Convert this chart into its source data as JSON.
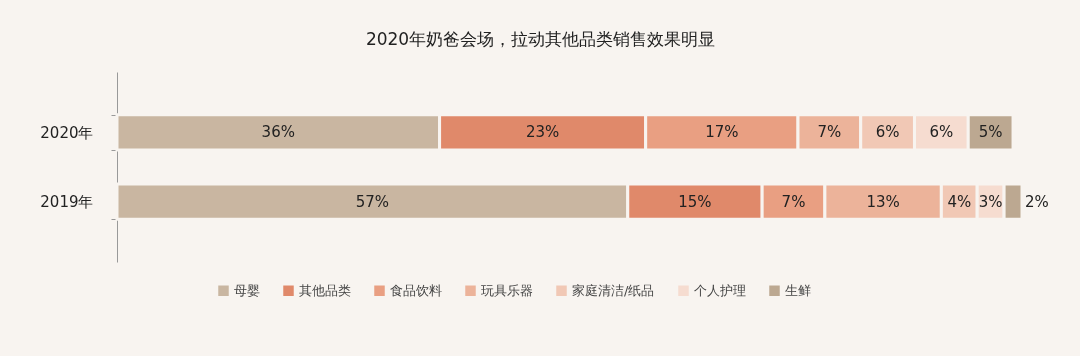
{
  "chart_data": {
    "type": "bar",
    "orientation": "horizontal",
    "stacked": true,
    "title": "2020年奶爸会场，拉动其他品类销售效果明显",
    "categories": [
      "2020年",
      "2019年"
    ],
    "xlim": [
      0,
      101
    ],
    "tick_labels": "y",
    "grid": false,
    "legend": "bottom",
    "series": [
      {
        "name": "母婴",
        "color": "#c9b6a1",
        "values": [
          36,
          57
        ],
        "value_labels": [
          "36%",
          "57%"
        ]
      },
      {
        "name": "其他品类",
        "color": "#e0896a",
        "values": [
          23,
          15
        ],
        "value_labels": [
          "23%",
          "15%"
        ]
      },
      {
        "name": "食品饮料",
        "color": "#e99f82",
        "values": [
          17,
          7
        ],
        "value_labels": [
          "17%",
          "7%"
        ]
      },
      {
        "name": "玩具乐器",
        "color": "#ecb39a",
        "values": [
          7,
          13
        ],
        "value_labels": [
          "7%",
          "13%"
        ]
      },
      {
        "name": "家庭清洁/纸品",
        "color": "#f1c8b5",
        "values": [
          6,
          4
        ],
        "value_labels": [
          "6%",
          "4%"
        ]
      },
      {
        "name": "个人护理",
        "color": "#f6dcd0",
        "values": [
          6,
          3
        ],
        "value_labels": [
          "6%",
          "3%"
        ]
      },
      {
        "name": "生鲜",
        "color": "#bca891",
        "values": [
          5,
          2
        ],
        "value_labels": [
          "5%",
          "2%"
        ]
      }
    ]
  }
}
